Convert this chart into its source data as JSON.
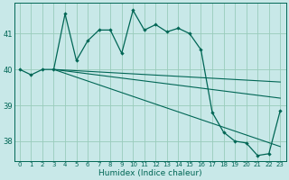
{
  "xlabel": "Humidex (Indice chaleur)",
  "bg_color": "#c8e8e8",
  "grid_color": "#99ccbb",
  "line_color": "#006655",
  "xlim_min": -0.5,
  "xlim_max": 23.5,
  "ylim_min": 37.45,
  "ylim_max": 41.85,
  "yticks": [
    38,
    39,
    40,
    41
  ],
  "xticks": [
    0,
    1,
    2,
    3,
    4,
    5,
    6,
    7,
    8,
    9,
    10,
    11,
    12,
    13,
    14,
    15,
    16,
    17,
    18,
    19,
    20,
    21,
    22,
    23
  ],
  "curve_x": [
    0,
    1,
    2,
    3,
    4,
    5,
    6,
    7,
    8,
    9,
    10,
    11,
    12,
    13,
    14,
    15,
    16,
    17,
    18,
    19,
    20,
    21,
    22,
    23
  ],
  "curve_y": [
    40.0,
    39.85,
    40.0,
    40.0,
    41.55,
    40.25,
    40.8,
    41.1,
    41.1,
    40.45,
    41.65,
    41.1,
    41.25,
    41.05,
    41.15,
    41.0,
    40.55,
    38.8,
    38.25,
    38.0,
    37.95,
    37.6,
    37.65,
    38.85
  ],
  "straight1": {
    "x": [
      3,
      23
    ],
    "y": [
      40.0,
      39.65
    ]
  },
  "straight2": {
    "x": [
      3,
      23
    ],
    "y": [
      40.0,
      39.2
    ]
  },
  "straight3": {
    "x": [
      3,
      23
    ],
    "y": [
      40.0,
      37.85
    ]
  }
}
